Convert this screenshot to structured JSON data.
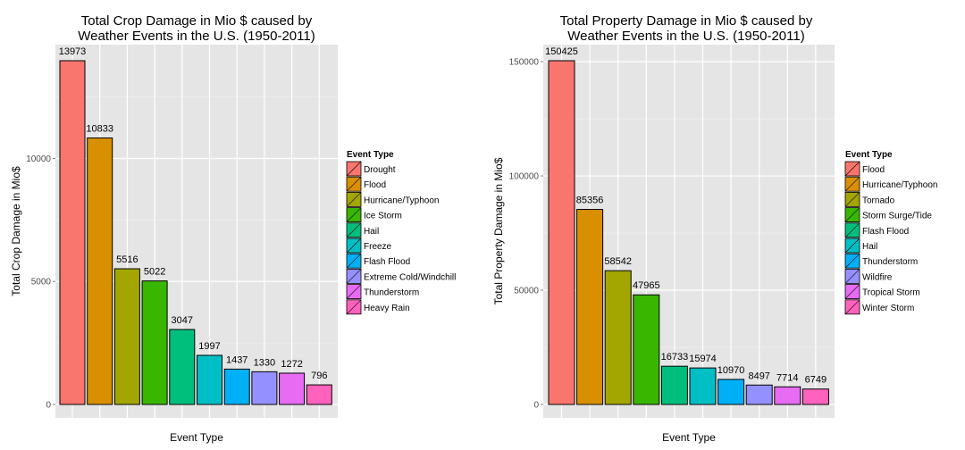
{
  "chart_data": [
    {
      "type": "bar",
      "title": "Total Crop Damage in Mio $ caused by Weather Events in the U.S. (1950-2011)",
      "title_lines": [
        "Total Crop Damage in Mio $ caused by",
        "Weather Events in the U.S. (1950-2011)"
      ],
      "xlabel": "Event Type",
      "ylabel": "Total Crop Damage in Mio$",
      "categories": [
        "Drought",
        "Flood",
        "Hurricane/Typhoon",
        "Ice Storm",
        "Hail",
        "Freeze",
        "Flash Flood",
        "Extreme Cold/Windchill",
        "Thunderstorm",
        "Heavy Rain"
      ],
      "values": [
        13973,
        10833,
        5516,
        5022,
        3047,
        1997,
        1437,
        1330,
        1272,
        796
      ],
      "colors": [
        "#F8766D",
        "#D89000",
        "#A3A500",
        "#39B600",
        "#00BF7D",
        "#00BFC4",
        "#00B0F6",
        "#9590FF",
        "#E76BF3",
        "#FF62BC"
      ],
      "ylim": [
        0,
        14000
      ],
      "yticks": [
        0,
        5000,
        10000
      ],
      "ytick_labels": [
        "0",
        "5000",
        "10000"
      ],
      "legend_title": "Event Type",
      "legend_position": "right",
      "grid": true,
      "background": "#E5E5E5"
    },
    {
      "type": "bar",
      "title": "Total Property Damage in Mio $ caused by Weather Events in the U.S. (1950-2011)",
      "title_lines": [
        "Total Property Damage in Mio $ caused by",
        "Weather Events in the U.S. (1950-2011)"
      ],
      "xlabel": "Event Type",
      "ylabel": "Total Property Damage in Mio$",
      "categories": [
        "Flood",
        "Hurricane/Typhoon",
        "Tornado",
        "Storm Surge/Tide",
        "Flash Flood",
        "Hail",
        "Thunderstorm",
        "Wildfire",
        "Tropical Storm",
        "Winter Storm"
      ],
      "values": [
        150425,
        85356,
        58542,
        47965,
        16733,
        15974,
        10970,
        8497,
        7714,
        6749
      ],
      "colors": [
        "#F8766D",
        "#D89000",
        "#A3A500",
        "#39B600",
        "#00BF7D",
        "#00BFC4",
        "#00B0F6",
        "#9590FF",
        "#E76BF3",
        "#FF62BC"
      ],
      "ylim": [
        0,
        150425
      ],
      "yticks": [
        0,
        50000,
        100000,
        150000
      ],
      "ytick_labels": [
        "0",
        "50000",
        "100000",
        "150000"
      ],
      "legend_title": "Event Type",
      "legend_position": "right",
      "grid": true,
      "background": "#E5E5E5"
    }
  ]
}
